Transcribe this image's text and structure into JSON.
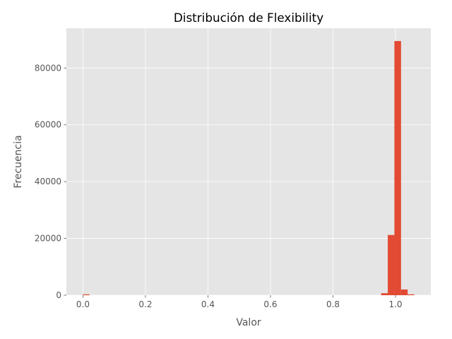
{
  "chart_data": {
    "type": "bar",
    "title": "Distribución de Flexibility",
    "xlabel": "Valor",
    "ylabel": "Frecuencia",
    "xlim": [
      -0.053,
      1.113
    ],
    "ylim": [
      0,
      94000
    ],
    "xticks": [
      0.0,
      0.2,
      0.4,
      0.6,
      0.8,
      1.0
    ],
    "xtick_labels": [
      "0.0",
      "0.2",
      "0.4",
      "0.6",
      "0.8",
      "1.0"
    ],
    "yticks": [
      0,
      20000,
      40000,
      60000,
      80000
    ],
    "ytick_labels": [
      "0",
      "20000",
      "40000",
      "60000",
      "80000"
    ],
    "grid": true,
    "bin_width": 0.0212,
    "bins": [
      {
        "x0": 0.0,
        "x1": 0.0212,
        "count": 300
      },
      {
        "x0": 0.9541,
        "x1": 0.9753,
        "count": 700
      },
      {
        "x0": 0.9753,
        "x1": 0.9965,
        "count": 21200
      },
      {
        "x0": 0.9965,
        "x1": 1.0177,
        "count": 89500
      },
      {
        "x0": 1.0177,
        "x1": 1.0389,
        "count": 2000
      },
      {
        "x0": 1.0389,
        "x1": 1.0601,
        "count": 300
      }
    ],
    "colors": {
      "bar": "#E24A33",
      "plot_background": "#E5E5E5",
      "grid": "#FFFFFF",
      "text": "#555555"
    }
  }
}
